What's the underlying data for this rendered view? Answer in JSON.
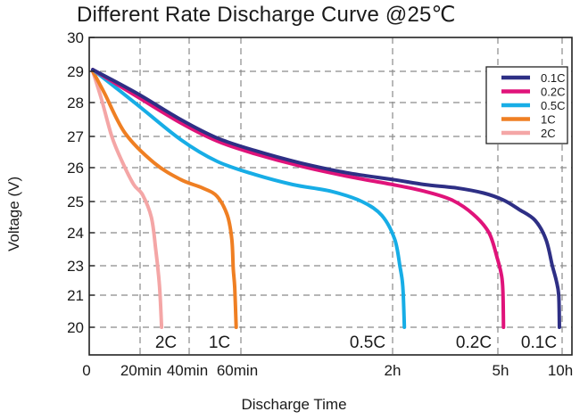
{
  "chart_data": {
    "type": "line",
    "title": "Different Rate Discharge Curve @25℃",
    "xlabel": "Discharge Time",
    "ylabel": "Voltage (V)",
    "y_tick_labels": [
      "30",
      "29",
      "28",
      "27",
      "26",
      "25",
      "24",
      "23",
      "21",
      "20"
    ],
    "x_tick_labels": [
      "0",
      "20min",
      "40min",
      "60min",
      "2h",
      "5h",
      "10h"
    ],
    "grid": true,
    "legend_position": "top-right",
    "series": [
      {
        "name": "0.1C",
        "color": "#2e2f85",
        "end_label": "0.1C",
        "points": [
          [
            0,
            29.05
          ],
          [
            0.3,
            28.3
          ],
          [
            0.6,
            27.5
          ],
          [
            0.85,
            26.95
          ],
          [
            1.1,
            26.55
          ],
          [
            1.4,
            26.15
          ],
          [
            1.7,
            25.85
          ],
          [
            2.0,
            25.65
          ],
          [
            2.3,
            25.5
          ],
          [
            2.6,
            25.4
          ],
          [
            2.85,
            25.25
          ],
          [
            3.05,
            25.05
          ],
          [
            3.3,
            24.75
          ],
          [
            3.55,
            24.4
          ],
          [
            3.72,
            23.8
          ],
          [
            3.82,
            23.0
          ],
          [
            3.88,
            22.0
          ],
          [
            3.92,
            21.0
          ],
          [
            3.93,
            20.0
          ]
        ]
      },
      {
        "name": "0.2C",
        "color": "#e0137a",
        "end_label": "0.2C",
        "points": [
          [
            0,
            29.05
          ],
          [
            0.3,
            28.2
          ],
          [
            0.6,
            27.4
          ],
          [
            0.85,
            26.85
          ],
          [
            1.1,
            26.45
          ],
          [
            1.4,
            26.05
          ],
          [
            1.7,
            25.75
          ],
          [
            2.0,
            25.5
          ],
          [
            2.3,
            25.3
          ],
          [
            2.55,
            25.05
          ],
          [
            2.75,
            24.6
          ],
          [
            2.9,
            24.0
          ],
          [
            2.98,
            23.2
          ],
          [
            3.03,
            22.3
          ],
          [
            3.05,
            21.3
          ],
          [
            3.06,
            20.0
          ]
        ]
      },
      {
        "name": "0.5C",
        "color": "#17ade6",
        "end_label": "0.5C",
        "points": [
          [
            0,
            29.05
          ],
          [
            0.3,
            27.95
          ],
          [
            0.6,
            26.9
          ],
          [
            0.85,
            26.2
          ],
          [
            1.1,
            25.8
          ],
          [
            1.35,
            25.5
          ],
          [
            1.6,
            25.3
          ],
          [
            1.8,
            25.0
          ],
          [
            1.93,
            24.55
          ],
          [
            2.02,
            23.8
          ],
          [
            2.07,
            22.9
          ],
          [
            2.09,
            22.0
          ],
          [
            2.1,
            21.0
          ],
          [
            2.11,
            20.0
          ]
        ]
      },
      {
        "name": "1C",
        "color": "#ef7f23",
        "end_label": "1C",
        "points": [
          [
            0,
            29.0
          ],
          [
            0.08,
            28.3
          ],
          [
            0.22,
            27.1
          ],
          [
            0.42,
            26.15
          ],
          [
            0.6,
            25.65
          ],
          [
            0.75,
            25.4
          ],
          [
            0.85,
            25.15
          ],
          [
            0.92,
            24.55
          ],
          [
            0.95,
            23.8
          ],
          [
            0.96,
            22.8
          ],
          [
            0.97,
            21.5
          ],
          [
            0.98,
            20.0
          ]
        ]
      },
      {
        "name": "2C",
        "color": "#f4a6a6",
        "end_label": "2C",
        "points": [
          [
            0,
            29.0
          ],
          [
            0.06,
            28.1
          ],
          [
            0.13,
            27.0
          ],
          [
            0.2,
            26.2
          ],
          [
            0.28,
            25.5
          ],
          [
            0.34,
            25.2
          ],
          [
            0.4,
            24.5
          ],
          [
            0.43,
            23.5
          ],
          [
            0.45,
            22.3
          ],
          [
            0.46,
            21.0
          ],
          [
            0.47,
            20.0
          ]
        ]
      }
    ]
  }
}
